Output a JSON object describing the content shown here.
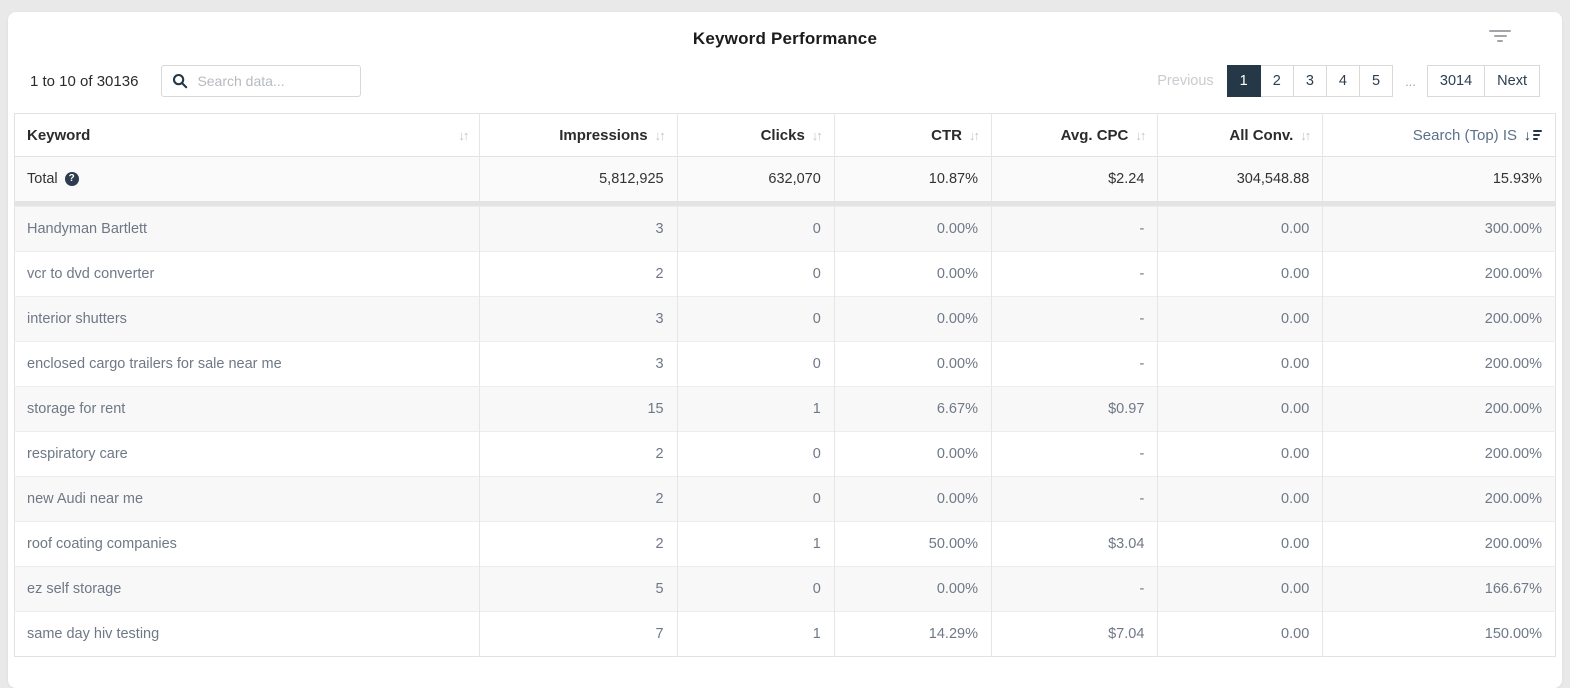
{
  "title": "Keyword Performance",
  "filter_icon": "filter-lines-icon",
  "toolbar": {
    "range_label": "1 to 10 of 30136",
    "search_placeholder": "Search data...",
    "search_value": ""
  },
  "pagination": {
    "previous_label": "Previous",
    "pages": [
      "1",
      "2",
      "3",
      "4",
      "5"
    ],
    "active_page": "1",
    "ellipsis": "...",
    "last_page": "3014",
    "next_label": "Next"
  },
  "table": {
    "columns": [
      {
        "label": "Keyword",
        "key": "keyword",
        "align": "left",
        "sort": "none"
      },
      {
        "label": "Impressions",
        "key": "impressions",
        "align": "right",
        "sort": "none"
      },
      {
        "label": "Clicks",
        "key": "clicks",
        "align": "right",
        "sort": "none"
      },
      {
        "label": "CTR",
        "key": "ctr",
        "align": "right",
        "sort": "none"
      },
      {
        "label": "Avg. CPC",
        "key": "avg_cpc",
        "align": "right",
        "sort": "none"
      },
      {
        "label": "All Conv.",
        "key": "all_conv",
        "align": "right",
        "sort": "none"
      },
      {
        "label": "Search (Top) IS",
        "key": "search_top_is",
        "align": "right",
        "sort": "desc"
      }
    ],
    "total": {
      "label": "Total",
      "values": {
        "impressions": "5,812,925",
        "clicks": "632,070",
        "ctr": "10.87%",
        "avg_cpc": "$2.24",
        "all_conv": "304,548.88",
        "search_top_is": "15.93%"
      }
    },
    "rows": [
      {
        "keyword": "Handyman Bartlett",
        "impressions": "3",
        "clicks": "0",
        "ctr": "0.00%",
        "avg_cpc": "-",
        "all_conv": "0.00",
        "search_top_is": "300.00%"
      },
      {
        "keyword": "vcr to dvd converter",
        "impressions": "2",
        "clicks": "0",
        "ctr": "0.00%",
        "avg_cpc": "-",
        "all_conv": "0.00",
        "search_top_is": "200.00%"
      },
      {
        "keyword": "interior shutters",
        "impressions": "3",
        "clicks": "0",
        "ctr": "0.00%",
        "avg_cpc": "-",
        "all_conv": "0.00",
        "search_top_is": "200.00%"
      },
      {
        "keyword": "enclosed cargo trailers for sale near me",
        "impressions": "3",
        "clicks": "0",
        "ctr": "0.00%",
        "avg_cpc": "-",
        "all_conv": "0.00",
        "search_top_is": "200.00%"
      },
      {
        "keyword": "storage for rent",
        "impressions": "15",
        "clicks": "1",
        "ctr": "6.67%",
        "avg_cpc": "$0.97",
        "all_conv": "0.00",
        "search_top_is": "200.00%"
      },
      {
        "keyword": "respiratory care",
        "impressions": "2",
        "clicks": "0",
        "ctr": "0.00%",
        "avg_cpc": "-",
        "all_conv": "0.00",
        "search_top_is": "200.00%"
      },
      {
        "keyword": "new Audi near me",
        "impressions": "2",
        "clicks": "0",
        "ctr": "0.00%",
        "avg_cpc": "-",
        "all_conv": "0.00",
        "search_top_is": "200.00%"
      },
      {
        "keyword": "roof coating companies",
        "impressions": "2",
        "clicks": "1",
        "ctr": "50.00%",
        "avg_cpc": "$3.04",
        "all_conv": "0.00",
        "search_top_is": "200.00%"
      },
      {
        "keyword": "ez self storage",
        "impressions": "5",
        "clicks": "0",
        "ctr": "0.00%",
        "avg_cpc": "-",
        "all_conv": "0.00",
        "search_top_is": "166.67%"
      },
      {
        "keyword": "same day hiv testing",
        "impressions": "7",
        "clicks": "1",
        "ctr": "14.29%",
        "avg_cpc": "$7.04",
        "all_conv": "0.00",
        "search_top_is": "150.00%"
      }
    ]
  },
  "colors": {
    "accent_dark": "#253847",
    "sorted_header_text": "#5b7186",
    "row_stripe": "#f8f8f8",
    "border": "#e3e3e3",
    "data_text": "#6f7886"
  }
}
